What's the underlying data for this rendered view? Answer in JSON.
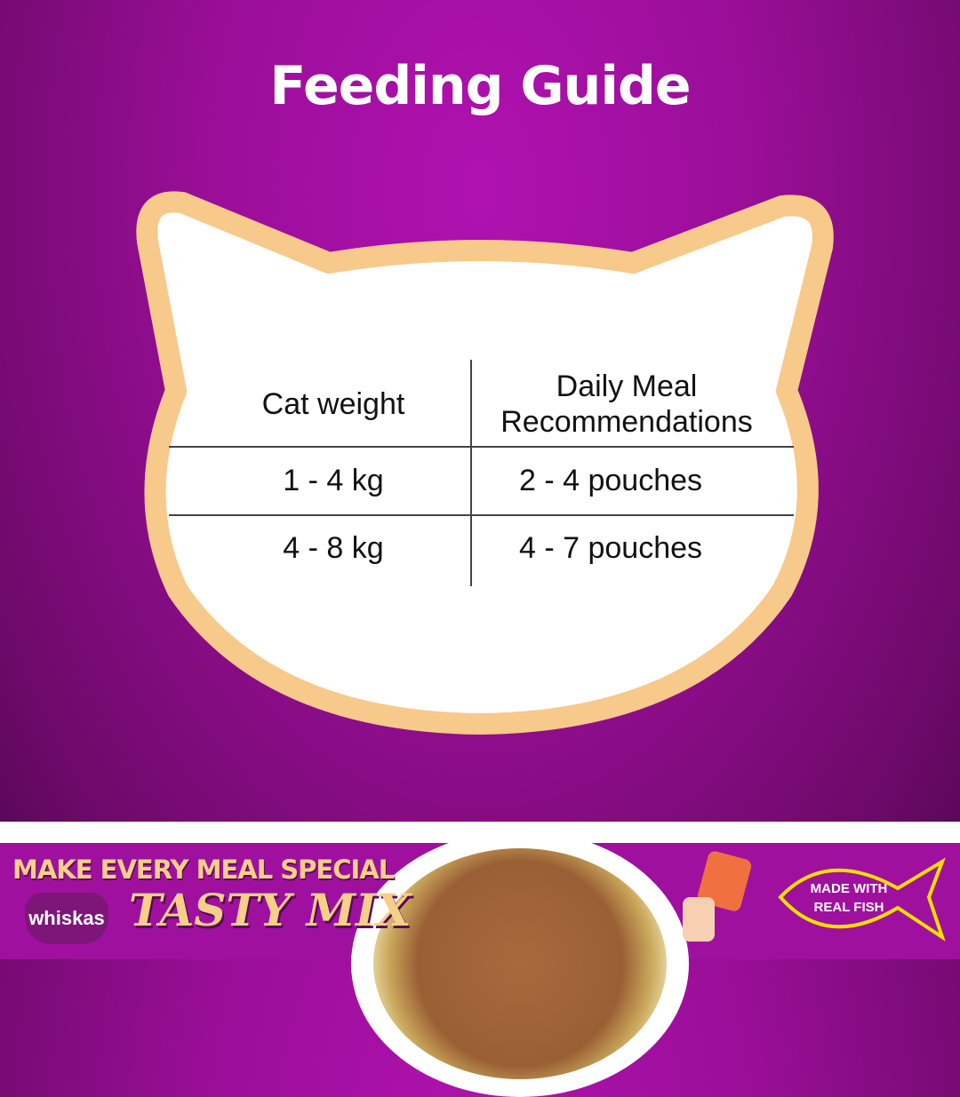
{
  "title": "Feeding Guide",
  "table": {
    "headers": [
      "Cat weight",
      "Daily Meal Recommendations"
    ],
    "rows": [
      [
        "1 - 4 kg",
        "2 - 4 pouches"
      ],
      [
        "4 - 8 kg",
        "4 - 7 pouches"
      ]
    ]
  },
  "banner": {
    "slogan": "MAKE EVERY MEAL SPECIAL",
    "brand": "whiskas",
    "product": "TASTY MIX",
    "badge": "MADE WITH REAL FISH"
  },
  "colors": {
    "background": "#9a0e98",
    "cat_border": "#f7c98a",
    "accent_text": "#f6cf8a",
    "badge_outline": "#f5e000"
  }
}
